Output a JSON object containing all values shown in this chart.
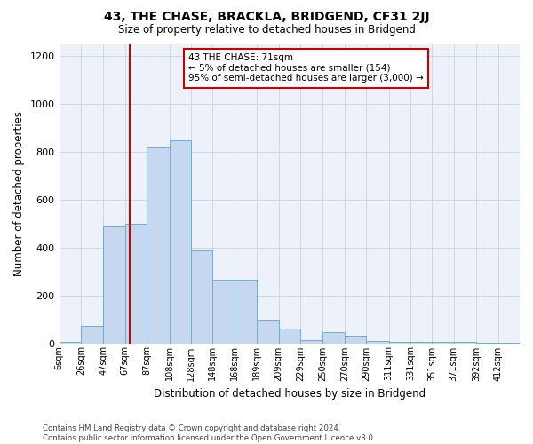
{
  "title": "43, THE CHASE, BRACKLA, BRIDGEND, CF31 2JJ",
  "subtitle": "Size of property relative to detached houses in Bridgend",
  "xlabel": "Distribution of detached houses by size in Bridgend",
  "ylabel": "Number of detached properties",
  "footer_line1": "Contains HM Land Registry data © Crown copyright and database right 2024.",
  "footer_line2": "Contains public sector information licensed under the Open Government Licence v3.0.",
  "property_label": "43 THE CHASE: 71sqm",
  "annotation_line2": "← 5% of detached houses are smaller (154)",
  "annotation_line3": "95% of semi-detached houses are larger (3,000) →",
  "bar_color": "#c5d8ef",
  "bar_edge_color": "#6aaed6",
  "vline_color": "#cc0000",
  "annotation_box_edge": "#cc0000",
  "grid_color": "#d0d8e8",
  "background_color": "#edf2fa",
  "ylim": [
    0,
    1250
  ],
  "bin_edges": [
    6,
    26,
    47,
    67,
    87,
    108,
    128,
    148,
    168,
    189,
    209,
    229,
    250,
    270,
    290,
    311,
    331,
    351,
    371,
    392,
    412,
    432
  ],
  "values": [
    5,
    72,
    490,
    500,
    820,
    850,
    390,
    265,
    265,
    100,
    63,
    12,
    45,
    30,
    8,
    5,
    5,
    5,
    4,
    2,
    1
  ],
  "tick_labels": [
    "6sqm",
    "26sqm",
    "47sqm",
    "67sqm",
    "87sqm",
    "108sqm",
    "128sqm",
    "148sqm",
    "168sqm",
    "189sqm",
    "209sqm",
    "229sqm",
    "250sqm",
    "270sqm",
    "290sqm",
    "311sqm",
    "331sqm",
    "351sqm",
    "371sqm",
    "392sqm",
    "412sqm"
  ],
  "vline_x": 71,
  "yticks": [
    0,
    200,
    400,
    600,
    800,
    1000,
    1200
  ]
}
